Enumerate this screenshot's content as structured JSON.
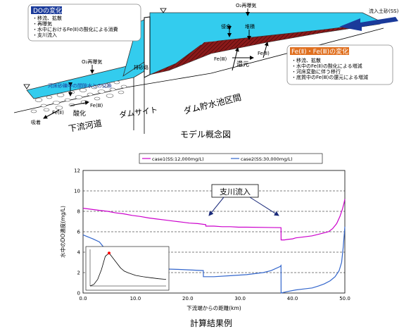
{
  "diagram": {
    "caption": "モデル概念図",
    "river_label": "下流河道",
    "dam_label": "ダムサイト",
    "reservoir_label": "ダム貯水池区間",
    "bypass_label": "排砂路",
    "reaeration_top": "O₂再曝気",
    "reaeration_left": "O₂再曝気",
    "erosion_label": "侵食",
    "deposition_label": "堆積",
    "inflow_label": "流入土砂(SS)",
    "exchange_label": "河床砂礫中の間隙水との交換",
    "adsorption_label": "吸着",
    "fe2_left": "Fe(Ⅱ)",
    "oxidation_label": "酸化",
    "fe3_left": "Fe(Ⅲ)",
    "fe3_res": "Fe(Ⅲ)",
    "reduction_label": "還元",
    "fe2_res": "Fe(Ⅱ)",
    "do_box": {
      "title": "DOの変化",
      "items": [
        "・移流、拡散",
        "・再曝気",
        "・水中におけるFe(Ⅱ)の酸化による消費",
        "・支川流入"
      ]
    },
    "fe_box": {
      "title": "Fe(Ⅱ)・Fe(Ⅲ)の変化",
      "items": [
        "・移流、拡散",
        "・水中のFe(Ⅱ)の酸化による増減",
        "・河床変動に伴う移行",
        "・底質中のFe(Ⅲ)の還元による増減"
      ]
    }
  },
  "chart_caption": "計算結果例",
  "tributary_label": "支川流入",
  "chart_data": {
    "type": "line",
    "title": "",
    "xlabel": "下流端からの距離(km)",
    "ylabel": "水中のDO濃度(mg/L)",
    "xlim": [
      0,
      32
    ],
    "ylim": [
      0,
      12
    ],
    "x_ticks": [
      "0.0",
      "10.0",
      "20.0",
      "30.0",
      "40.0",
      "50.0"
    ],
    "x_tick_values": [
      0,
      6.4,
      12.8,
      19.2,
      25.6,
      32
    ],
    "y_ticks": [
      "0",
      "2",
      "4",
      "6",
      "8",
      "10",
      "12"
    ],
    "grid": "dashed horizontal",
    "legend_position": "top",
    "series": [
      {
        "name": "case1(SS:12,000mg/L)",
        "color": "#cc00cc",
        "x": [
          0,
          1,
          2,
          3,
          4,
          5,
          6,
          7,
          8,
          9,
          10,
          11,
          12,
          13,
          14,
          15,
          15.01,
          16,
          17,
          18,
          19,
          20,
          24.2,
          24.21,
          24.6,
          25,
          25.6,
          26,
          27,
          28,
          29,
          30,
          30.5,
          31,
          31.4,
          31.7,
          31.9,
          32
        ],
        "y": [
          8.3,
          8.2,
          8.1,
          8.0,
          7.85,
          7.75,
          7.6,
          7.5,
          7.35,
          7.25,
          7.15,
          7.05,
          6.95,
          6.85,
          6.8,
          6.7,
          6.55,
          6.55,
          6.5,
          6.5,
          6.45,
          6.45,
          6.4,
          5.2,
          5.2,
          5.25,
          5.3,
          5.4,
          5.5,
          5.6,
          5.8,
          6.0,
          6.3,
          6.8,
          7.5,
          8.2,
          8.8,
          9.2
        ]
      },
      {
        "name": "case2(SS:30,000mg/L)",
        "color": "#3366cc",
        "x": [
          0,
          0.6,
          1.2,
          2,
          3,
          3.6,
          3.61,
          5,
          7,
          8.5,
          10,
          12,
          14.7,
          14.71,
          16,
          18,
          20,
          22,
          23,
          24.1,
          24.2,
          24.21,
          25,
          26,
          27,
          28,
          28.8,
          29.5,
          30.2,
          30.8,
          31.3,
          31.6,
          31.8,
          32
        ],
        "y": [
          5.7,
          5.5,
          5.3,
          5.0,
          4.0,
          3.0,
          2.55,
          2.45,
          2.4,
          2.4,
          2.35,
          2.3,
          2.2,
          1.6,
          1.6,
          1.7,
          1.8,
          2.0,
          2.2,
          2.6,
          2.7,
          0.0,
          0.15,
          0.3,
          0.4,
          0.5,
          0.7,
          0.9,
          1.2,
          1.6,
          2.2,
          3.0,
          4.5,
          6.5
        ]
      }
    ]
  },
  "inset_chart": {
    "type": "line",
    "x": [
      0,
      0.5,
      1,
      1.5,
      2,
      2.5,
      3,
      3.5,
      4,
      4.5,
      5,
      6,
      7,
      8,
      9,
      10
    ],
    "y": [
      0,
      0.05,
      0.2,
      0.5,
      0.9,
      1.0,
      0.85,
      0.7,
      0.55,
      0.45,
      0.4,
      0.32,
      0.28,
      0.25,
      0.22,
      0.2
    ],
    "peak_color": "#ff0000"
  }
}
